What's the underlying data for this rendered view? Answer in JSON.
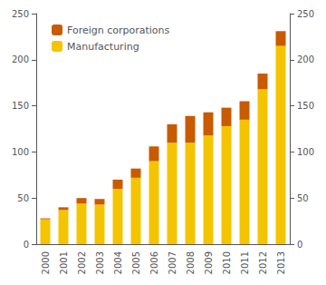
{
  "chart_data": {
    "type": "bar",
    "stacked": true,
    "categories": [
      "2000",
      "2001",
      "2002",
      "2003",
      "2004",
      "2005",
      "2006",
      "2007",
      "2008",
      "2009",
      "2010",
      "2011",
      "2012",
      "2013"
    ],
    "series": [
      {
        "name": "Manufacturing",
        "color": "#F5C400",
        "values": [
          27,
          37,
          44,
          43,
          60,
          72,
          90,
          110,
          110,
          118,
          128,
          135,
          168,
          215
        ]
      },
      {
        "name": "Foreign corporations",
        "color": "#C85A00",
        "values": [
          1,
          3,
          6,
          6,
          10,
          10,
          16,
          20,
          29,
          25,
          20,
          20,
          17,
          16
        ]
      }
    ],
    "legend_order": [
      "Foreign corporations",
      "Manufacturing"
    ],
    "ylim": [
      0,
      250
    ],
    "yticks": [
      0,
      50,
      100,
      150,
      200,
      250
    ],
    "y2lim": [
      0,
      250
    ],
    "y2ticks": [
      0,
      50,
      100,
      150,
      200,
      250
    ],
    "grid": false,
    "legend": "upper left"
  }
}
